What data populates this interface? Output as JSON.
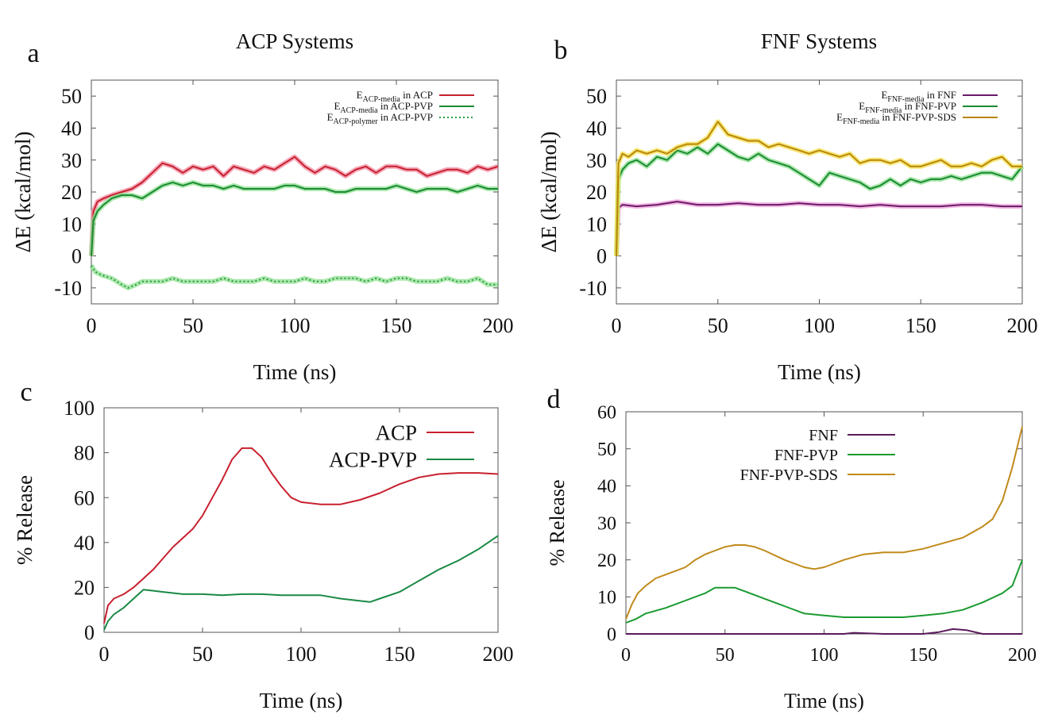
{
  "chart_data": [
    {
      "panel_letter": "a",
      "type": "line",
      "title": "ACP Systems",
      "xlabel": "Time (ns)",
      "ylabel": "ΔE (kcal/mol)",
      "xlim": [
        0,
        200
      ],
      "ylim": [
        -15,
        55
      ],
      "xticks": [
        0,
        50,
        100,
        150,
        200
      ],
      "yticks": [
        -10,
        0,
        10,
        20,
        30,
        40,
        50
      ],
      "grid": false,
      "legend_position": "top-right",
      "series": [
        {
          "name": "E_ACP-media in ACP",
          "legend_base": "E",
          "legend_sub": "ACP-media",
          "legend_rest": " in ACP",
          "color": "#c8202f",
          "shade": "#f08aa0",
          "dash": "none",
          "x": [
            0,
            1,
            3,
            6,
            10,
            15,
            20,
            25,
            30,
            35,
            40,
            45,
            50,
            55,
            60,
            65,
            70,
            75,
            80,
            85,
            90,
            95,
            100,
            105,
            110,
            115,
            120,
            125,
            130,
            135,
            140,
            145,
            150,
            155,
            160,
            165,
            170,
            175,
            180,
            185,
            190,
            195,
            200
          ],
          "y": [
            0,
            14,
            17,
            18,
            19,
            20,
            21,
            23,
            26,
            29,
            28,
            26,
            28,
            27,
            28,
            25,
            28,
            27,
            26,
            28,
            27,
            29,
            31,
            28,
            26,
            28,
            27,
            25,
            27,
            28,
            26,
            28,
            28,
            27,
            27,
            25,
            26,
            27,
            27,
            26,
            28,
            27,
            28
          ]
        },
        {
          "name": "E_ACP-media in ACP-PVP",
          "legend_base": "E",
          "legend_sub": "ACP-media",
          "legend_rest": " in ACP-PVP",
          "color": "#1a8a35",
          "shade": "#8fe08f",
          "dash": "none",
          "x": [
            0,
            1,
            3,
            6,
            10,
            15,
            20,
            25,
            30,
            35,
            40,
            45,
            50,
            55,
            60,
            65,
            70,
            75,
            80,
            85,
            90,
            95,
            100,
            105,
            110,
            115,
            120,
            125,
            130,
            135,
            140,
            145,
            150,
            155,
            160,
            165,
            170,
            175,
            180,
            185,
            190,
            195,
            200
          ],
          "y": [
            0,
            11,
            14,
            16,
            18,
            19,
            19,
            18,
            20,
            22,
            23,
            22,
            23,
            22,
            22,
            21,
            22,
            21,
            21,
            21,
            21,
            22,
            22,
            21,
            21,
            21,
            20,
            20,
            21,
            21,
            21,
            21,
            22,
            21,
            20,
            21,
            21,
            21,
            20,
            21,
            22,
            21,
            21
          ]
        },
        {
          "name": "E_ACP-polymer in ACP-PVP",
          "legend_base": "E",
          "legend_sub": "ACP-polymer",
          "legend_rest": " in ACP-PVP",
          "color": "#2a9a45",
          "shade": "#8fe08f",
          "dash": "2,3",
          "x": [
            0,
            2,
            5,
            10,
            15,
            18,
            22,
            25,
            30,
            35,
            40,
            45,
            50,
            55,
            60,
            65,
            70,
            75,
            80,
            85,
            90,
            95,
            100,
            105,
            110,
            115,
            120,
            125,
            130,
            135,
            140,
            145,
            150,
            155,
            160,
            165,
            170,
            175,
            180,
            185,
            190,
            195,
            200
          ],
          "y": [
            -3,
            -5,
            -6,
            -7,
            -9,
            -10,
            -9,
            -8,
            -8,
            -8,
            -7,
            -8,
            -8,
            -8,
            -8,
            -7,
            -8,
            -8,
            -8,
            -7,
            -8,
            -8,
            -8,
            -7,
            -8,
            -8,
            -7,
            -7,
            -7,
            -8,
            -7,
            -8,
            -7,
            -7,
            -8,
            -8,
            -8,
            -7,
            -8,
            -8,
            -7,
            -9,
            -9
          ]
        }
      ]
    },
    {
      "panel_letter": "b",
      "type": "line",
      "title": "FNF Systems",
      "xlabel": "Time (ns)",
      "ylabel": "ΔE (kcal/mol)",
      "xlim": [
        0,
        200
      ],
      "ylim": [
        -15,
        55
      ],
      "xticks": [
        0,
        50,
        100,
        150,
        200
      ],
      "yticks": [
        -10,
        0,
        10,
        20,
        30,
        40,
        50
      ],
      "grid": false,
      "legend_position": "top-right",
      "series": [
        {
          "name": "E_FNF-media in FNF",
          "legend_base": "E",
          "legend_sub": "FNF-media",
          "legend_rest": " in FNF",
          "color": "#6a1a6a",
          "shade": "#f0a0d8",
          "dash": "none",
          "x": [
            0,
            1,
            3,
            10,
            20,
            30,
            40,
            50,
            60,
            70,
            80,
            90,
            100,
            110,
            120,
            130,
            140,
            150,
            160,
            170,
            180,
            190,
            200
          ],
          "y": [
            0,
            15,
            16,
            15.5,
            16,
            17,
            16,
            16,
            16.5,
            16,
            16,
            16.5,
            16,
            16,
            15.5,
            16,
            15.5,
            15.5,
            15.5,
            16,
            16,
            15.5,
            15.5
          ]
        },
        {
          "name": "E_FNF-media in FNF-PVP",
          "legend_base": "E",
          "legend_sub": "FNF-media",
          "legend_rest": " in FNF-PVP",
          "color": "#1a8a35",
          "shade": "#8fe08f",
          "dash": "none",
          "x": [
            0,
            1,
            3,
            6,
            10,
            15,
            20,
            25,
            30,
            35,
            40,
            45,
            50,
            55,
            60,
            65,
            70,
            75,
            80,
            85,
            90,
            95,
            100,
            105,
            110,
            115,
            120,
            125,
            130,
            135,
            140,
            145,
            150,
            155,
            160,
            165,
            170,
            175,
            180,
            185,
            190,
            195,
            200
          ],
          "y": [
            0,
            24,
            27,
            29,
            30,
            28,
            31,
            30,
            33,
            32,
            34,
            32,
            35,
            33,
            31,
            30,
            32,
            30,
            29,
            28,
            26,
            24,
            22,
            26,
            25,
            24,
            23,
            21,
            22,
            24,
            22,
            24,
            23,
            24,
            24,
            25,
            24,
            25,
            26,
            26,
            25,
            24,
            28
          ]
        },
        {
          "name": "E_FNF-media in FNF-PVP-SDS",
          "legend_base": "E",
          "legend_sub": "FNF-media",
          "legend_rest": " in FNF-PVP-SDS",
          "color": "#b8860b",
          "shade": "#f4e04a",
          "dash": "none",
          "x": [
            0,
            1,
            3,
            6,
            10,
            15,
            20,
            25,
            30,
            35,
            40,
            45,
            50,
            55,
            60,
            65,
            70,
            75,
            80,
            85,
            90,
            95,
            100,
            105,
            110,
            115,
            120,
            125,
            130,
            135,
            140,
            145,
            150,
            155,
            160,
            165,
            170,
            175,
            180,
            185,
            190,
            195,
            200
          ],
          "y": [
            0,
            29,
            32,
            31,
            33,
            32,
            33,
            32,
            34,
            35,
            35,
            37,
            42,
            38,
            37,
            36,
            36,
            34,
            35,
            34,
            33,
            32,
            33,
            32,
            31,
            32,
            29,
            30,
            30,
            29,
            30,
            28,
            28,
            29,
            30,
            28,
            28,
            29,
            28,
            30,
            31,
            28,
            28
          ]
        }
      ]
    },
    {
      "panel_letter": "c",
      "type": "line",
      "title": "",
      "xlabel": "Time (ns)",
      "ylabel": "% Release",
      "xlim": [
        0,
        200
      ],
      "ylim": [
        0,
        100
      ],
      "xticks": [
        0,
        50,
        100,
        150,
        200
      ],
      "yticks": [
        0,
        20,
        40,
        60,
        80,
        100
      ],
      "grid": false,
      "legend_position": "top-right",
      "series": [
        {
          "name": "ACP",
          "color": "#c8202f",
          "dash": "none",
          "x": [
            0,
            2,
            5,
            10,
            15,
            20,
            25,
            30,
            35,
            40,
            45,
            50,
            55,
            60,
            65,
            70,
            75,
            80,
            85,
            90,
            95,
            100,
            110,
            120,
            130,
            140,
            150,
            160,
            170,
            180,
            190,
            200
          ],
          "y": [
            4,
            12,
            15,
            17,
            20,
            24,
            28,
            33,
            38,
            42,
            46,
            52,
            60,
            68,
            77,
            82,
            82,
            78,
            71,
            65,
            60,
            58,
            57,
            57,
            59,
            62,
            66,
            69,
            70.5,
            71,
            71,
            70.5
          ]
        },
        {
          "name": "ACP-PVP",
          "color": "#1a8a45",
          "dash": "none",
          "x": [
            0,
            2,
            5,
            10,
            15,
            20,
            25,
            30,
            40,
            50,
            60,
            70,
            80,
            90,
            100,
            110,
            120,
            130,
            135,
            140,
            150,
            160,
            170,
            180,
            190,
            200
          ],
          "y": [
            1,
            5,
            8,
            11,
            15,
            19,
            18.5,
            18,
            17,
            17,
            16.5,
            17,
            17,
            16.5,
            16.5,
            16.5,
            15,
            14,
            13.5,
            15,
            18,
            23,
            28,
            32,
            37,
            43
          ]
        }
      ]
    },
    {
      "panel_letter": "d",
      "type": "line",
      "title": "",
      "xlabel": "Time (ns)",
      "ylabel": "% Release",
      "xlim": [
        0,
        200
      ],
      "ylim": [
        0,
        60
      ],
      "xticks": [
        0,
        50,
        100,
        150,
        200
      ],
      "yticks": [
        0,
        10,
        20,
        30,
        40,
        50,
        60
      ],
      "grid": false,
      "legend_position": "top-right",
      "series": [
        {
          "name": "FNF",
          "color": "#5a1a5a",
          "dash": "none",
          "x": [
            0,
            5,
            20,
            40,
            60,
            80,
            100,
            110,
            115,
            120,
            130,
            140,
            150,
            158,
            165,
            172,
            180,
            190,
            200
          ],
          "y": [
            0,
            0,
            0,
            0,
            0,
            0,
            0,
            0,
            0.3,
            0.2,
            0,
            0,
            0,
            0.5,
            1.3,
            1,
            0,
            0,
            0
          ]
        },
        {
          "name": "FNF-PVP",
          "color": "#1a9a30",
          "dash": "none",
          "x": [
            0,
            5,
            10,
            20,
            30,
            40,
            45,
            50,
            55,
            60,
            70,
            80,
            90,
            100,
            110,
            120,
            130,
            140,
            150,
            160,
            170,
            180,
            190,
            195,
            200
          ],
          "y": [
            3,
            4,
            5.5,
            7,
            9,
            11,
            12.5,
            12.5,
            12.5,
            11.5,
            9.5,
            7.5,
            5.5,
            5,
            4.5,
            4.5,
            4.5,
            4.5,
            5,
            5.5,
            6.5,
            8.5,
            11,
            13,
            20
          ]
        },
        {
          "name": "FNF-PVP-SDS",
          "color": "#c08a1a",
          "dash": "none",
          "x": [
            0,
            3,
            6,
            10,
            15,
            20,
            25,
            30,
            35,
            40,
            45,
            50,
            55,
            60,
            65,
            70,
            80,
            90,
            95,
            100,
            110,
            120,
            130,
            140,
            150,
            160,
            170,
            180,
            185,
            190,
            195,
            200
          ],
          "y": [
            4,
            8,
            11,
            13,
            15,
            16,
            17,
            18,
            20,
            21.5,
            22.5,
            23.5,
            24,
            24,
            23.5,
            22.5,
            20,
            18,
            17.5,
            18,
            20,
            21.5,
            22,
            22,
            23,
            24.5,
            26,
            29,
            31,
            36,
            45,
            56
          ]
        }
      ]
    }
  ]
}
